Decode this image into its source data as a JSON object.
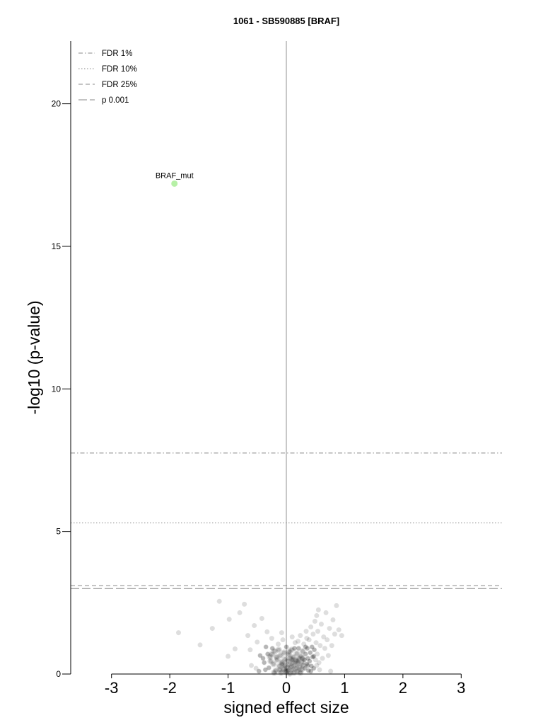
{
  "chart_data": {
    "type": "scatter",
    "title": "1061 - SB590885 [BRAF]",
    "xlabel": "signed effect size",
    "ylabel": "-log10 (p-value)",
    "xlim": [
      -3.7,
      3.7
    ],
    "ylim": [
      0,
      22.2
    ],
    "x_ticks": [
      -3,
      -2,
      -1,
      0,
      1,
      2,
      3
    ],
    "y_ticks": [
      0,
      5,
      10,
      15,
      20
    ],
    "x_tick_labels": [
      "-3",
      "-2",
      "-1",
      "0",
      "1",
      "2",
      "3"
    ],
    "y_tick_labels": [
      "0",
      "5",
      "10",
      "15",
      "20"
    ],
    "grid": false,
    "legend_position": "top-left",
    "thresholds": [
      {
        "name": "FDR 1%",
        "value": 7.75,
        "style": "dash-dot"
      },
      {
        "name": "FDR 10%",
        "value": 5.3,
        "style": "dotted"
      },
      {
        "name": "FDR 25%",
        "value": 3.1,
        "style": "dashed"
      },
      {
        "name": "p 0.001",
        "value": 3.0,
        "style": "long-dash"
      }
    ],
    "highlight": [
      {
        "label": "BRAF_mut",
        "x": -1.92,
        "y": 17.2,
        "color": "#b6f0a6"
      }
    ],
    "points": [
      [
        -1.85,
        1.45
      ],
      [
        -1.48,
        1.02
      ],
      [
        -1.27,
        1.6
      ],
      [
        -1.15,
        2.55
      ],
      [
        -1.0,
        0.62
      ],
      [
        -0.98,
        1.92
      ],
      [
        -0.88,
        0.88
      ],
      [
        -0.8,
        2.15
      ],
      [
        -0.72,
        2.45
      ],
      [
        -0.66,
        1.35
      ],
      [
        -0.62,
        0.85
      ],
      [
        -0.55,
        1.7
      ],
      [
        -0.5,
        1.12
      ],
      [
        -0.45,
        0.65
      ],
      [
        -0.42,
        1.95
      ],
      [
        -0.38,
        0.4
      ],
      [
        -0.35,
        0.95
      ],
      [
        -0.33,
        1.48
      ],
      [
        -0.3,
        0.22
      ],
      [
        -0.28,
        0.6
      ],
      [
        -0.25,
        1.25
      ],
      [
        -0.22,
        0.35
      ],
      [
        -0.2,
        0.8
      ],
      [
        -0.18,
        0.12
      ],
      [
        -0.16,
        0.5
      ],
      [
        -0.14,
        1.05
      ],
      [
        -0.12,
        0.28
      ],
      [
        -0.1,
        0.65
      ],
      [
        -0.09,
        0.05
      ],
      [
        -0.08,
        0.42
      ],
      [
        -0.06,
        1.2
      ],
      [
        -0.05,
        0.18
      ],
      [
        -0.04,
        0.75
      ],
      [
        -0.03,
        0.3
      ],
      [
        -0.02,
        0.52
      ],
      [
        -0.01,
        0.08
      ],
      [
        0.0,
        0.95
      ],
      [
        0.01,
        0.22
      ],
      [
        0.02,
        0.45
      ],
      [
        0.03,
        0.12
      ],
      [
        0.04,
        0.68
      ],
      [
        0.05,
        0.33
      ],
      [
        0.06,
        0.02
      ],
      [
        0.07,
        0.55
      ],
      [
        0.08,
        0.25
      ],
      [
        0.09,
        0.85
      ],
      [
        0.1,
        0.15
      ],
      [
        0.11,
        0.4
      ],
      [
        0.12,
        0.6
      ],
      [
        0.13,
        0.05
      ],
      [
        0.14,
        0.3
      ],
      [
        0.15,
        1.1
      ],
      [
        0.16,
        0.48
      ],
      [
        0.17,
        0.2
      ],
      [
        0.18,
        0.72
      ],
      [
        0.19,
        0.1
      ],
      [
        0.2,
        0.38
      ],
      [
        0.21,
        0.9
      ],
      [
        0.22,
        0.55
      ],
      [
        0.23,
        0.25
      ],
      [
        0.24,
        1.35
      ],
      [
        0.25,
        0.62
      ],
      [
        0.26,
        0.15
      ],
      [
        0.27,
        0.42
      ],
      [
        0.28,
        0.8
      ],
      [
        0.29,
        0.3
      ],
      [
        0.3,
        1.05
      ],
      [
        0.31,
        0.5
      ],
      [
        0.32,
        0.2
      ],
      [
        0.33,
        0.7
      ],
      [
        0.34,
        1.5
      ],
      [
        0.35,
        0.35
      ],
      [
        0.36,
        0.9
      ],
      [
        0.37,
        0.55
      ],
      [
        0.38,
        0.12
      ],
      [
        0.39,
        1.2
      ],
      [
        0.4,
        0.45
      ],
      [
        0.41,
        0.75
      ],
      [
        0.42,
        1.65
      ],
      [
        0.43,
        0.28
      ],
      [
        0.44,
        0.95
      ],
      [
        0.45,
        0.6
      ],
      [
        0.46,
        1.4
      ],
      [
        0.47,
        0.2
      ],
      [
        0.48,
        0.85
      ],
      [
        0.49,
        1.85
      ],
      [
        0.5,
        0.5
      ],
      [
        0.51,
        1.1
      ],
      [
        0.52,
        2.05
      ],
      [
        0.53,
        0.7
      ],
      [
        0.54,
        1.5
      ],
      [
        0.55,
        2.25
      ],
      [
        0.56,
        0.4
      ],
      [
        0.58,
        1.0
      ],
      [
        0.6,
        1.75
      ],
      [
        0.62,
        0.55
      ],
      [
        0.64,
        1.3
      ],
      [
        0.66,
        0.9
      ],
      [
        0.68,
        2.15
      ],
      [
        0.7,
        1.2
      ],
      [
        0.72,
        0.65
      ],
      [
        0.74,
        1.6
      ],
      [
        0.76,
        0.1
      ],
      [
        0.78,
        1.0
      ],
      [
        0.8,
        1.9
      ],
      [
        0.83,
        1.4
      ],
      [
        0.86,
        2.4
      ],
      [
        0.9,
        1.55
      ],
      [
        0.95,
        1.35
      ],
      [
        -0.6,
        0.3
      ],
      [
        -0.52,
        0.2
      ],
      [
        -0.47,
        0.1
      ],
      [
        -0.4,
        0.55
      ],
      [
        -0.36,
        0.15
      ],
      [
        -0.32,
        0.7
      ],
      [
        -0.27,
        0.45
      ],
      [
        -0.24,
        0.9
      ],
      [
        -0.21,
        0.05
      ],
      [
        -0.17,
        0.6
      ],
      [
        -0.13,
        0.85
      ],
      [
        -0.11,
        0.15
      ],
      [
        -0.07,
        0.35
      ],
      [
        0.0,
        0.1
      ],
      [
        0.05,
        0.78
      ],
      [
        0.1,
        0.5
      ],
      [
        0.14,
        0.9
      ],
      [
        0.19,
        0.45
      ],
      [
        0.24,
        0.05
      ],
      [
        0.28,
        0.55
      ],
      [
        0.33,
        0.95
      ],
      [
        0.37,
        0.3
      ],
      [
        0.42,
        0.1
      ],
      [
        0.47,
        0.62
      ],
      [
        0.52,
        0.3
      ],
      [
        0.57,
        0.15
      ],
      [
        -0.08,
        1.45
      ],
      [
        0.1,
        1.3
      ],
      [
        0.2,
        1.15
      ],
      [
        -0.25,
        0.7
      ],
      [
        0.35,
        1.25
      ]
    ]
  }
}
